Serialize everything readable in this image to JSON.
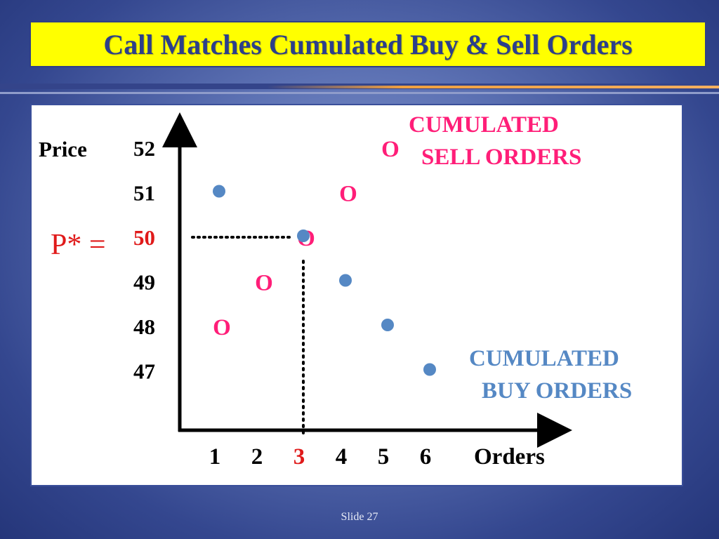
{
  "title": "Call Matches Cumulated Buy & Sell Orders",
  "slide_label": "Slide 27",
  "colors": {
    "sell": "#ff1e78",
    "buy": "#5588c4",
    "equilibrium": "#e01a1a",
    "title_bg": "#ffff00",
    "title_text": "#2c3f8a"
  },
  "chart_data": {
    "type": "scatter",
    "ylabel": "Price",
    "xlabel": "Orders",
    "x_ticks": [
      1,
      2,
      3,
      4,
      5,
      6
    ],
    "y_ticks": [
      52,
      51,
      50,
      49,
      48,
      47
    ],
    "xlim": [
      0,
      6.5
    ],
    "ylim": [
      46.5,
      52.5
    ],
    "grid": false,
    "equilibrium": {
      "label": "P* =",
      "price": 50,
      "price_text": "50",
      "quantity": 3,
      "quantity_text": "3"
    },
    "series": [
      {
        "name": "CUMULATED SELL ORDERS",
        "name_lines": [
          "CUMULATED",
          "SELL ORDERS"
        ],
        "marker": "O",
        "points": [
          [
            1,
            48
          ],
          [
            2,
            49
          ],
          [
            3,
            50
          ],
          [
            4,
            51
          ],
          [
            5,
            52
          ]
        ]
      },
      {
        "name": "CUMULATED BUY ORDERS",
        "name_lines": [
          "CUMULATED",
          "BUY ORDERS"
        ],
        "marker": "dot",
        "points": [
          [
            1,
            51
          ],
          [
            3,
            50
          ],
          [
            4,
            49
          ],
          [
            5,
            48
          ],
          [
            6,
            47
          ]
        ]
      }
    ]
  }
}
